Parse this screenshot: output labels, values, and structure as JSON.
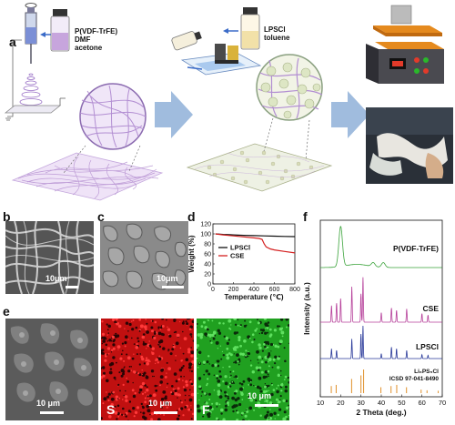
{
  "panels": {
    "a": "a",
    "b": "b",
    "c": "c",
    "d": "d",
    "e": "e",
    "f": "f"
  },
  "schematic": {
    "polymer_solution": [
      "P(VDF-TrFE)",
      "DMF",
      "acetone"
    ],
    "sulfide_solution": [
      "LPSCl",
      "toluene"
    ]
  },
  "micrographs": {
    "b_scale": "10μm",
    "c_scale": "10μm",
    "e_scale_1": "10 μm",
    "e_scale_2": "10 μm",
    "e_scale_3": "10 μm",
    "e_channel_S": "S",
    "e_channel_F": "F"
  },
  "colors": {
    "fiber": "#b894d3",
    "arrow": "#8fb0d8",
    "tga_lpscl": "#111111",
    "tga_cse": "#d42020",
    "xrd_pvdf": "#3aa33a",
    "xrd_cse": "#b6409a",
    "xrd_lpscl": "#2a3a9a",
    "xrd_ref": "#e0902a",
    "eds_S": "#e01818",
    "eds_F": "#2ab82a"
  },
  "chart_data": [
    {
      "type": "line",
      "panel": "d",
      "xlabel": "Temperature (℃)",
      "ylabel": "Weight (%)",
      "xlim": [
        0,
        800
      ],
      "ylim": [
        0,
        120
      ],
      "xticks": [
        0,
        200,
        400,
        600,
        800
      ],
      "yticks": [
        0,
        20,
        40,
        60,
        80,
        100,
        120
      ],
      "legend_position": "center-left",
      "series": [
        {
          "name": "LPSCl",
          "color": "#111111",
          "x": [
            25,
            100,
            200,
            300,
            400,
            500,
            600,
            700,
            800
          ],
          "y": [
            100,
            99,
            98,
            97,
            96.5,
            96,
            95.5,
            95,
            94.5
          ]
        },
        {
          "name": "CSE",
          "color": "#d42020",
          "x": [
            25,
            100,
            200,
            300,
            400,
            450,
            480,
            500,
            520,
            560,
            600,
            700,
            800
          ],
          "y": [
            100,
            98,
            96,
            94,
            92,
            91,
            89,
            80,
            74,
            70,
            68,
            65,
            62
          ]
        }
      ]
    },
    {
      "type": "line",
      "panel": "f",
      "xlabel": "2 Theta (deg.)",
      "ylabel": "Intensity (a.u.)",
      "xlim": [
        10,
        70
      ],
      "xticks": [
        10,
        20,
        30,
        40,
        50,
        60,
        70
      ],
      "traces": [
        {
          "name": "P(VDF-TrFE)",
          "color": "#3aa33a",
          "peaks": [
            [
              20,
              1.0
            ],
            [
              36,
              0.1
            ],
            [
              41,
              0.12
            ]
          ]
        },
        {
          "name": "CSE",
          "color": "#b6409a",
          "peaks": [
            [
              15.5,
              0.35
            ],
            [
              18,
              0.4
            ],
            [
              20,
              0.5
            ],
            [
              25.5,
              0.75
            ],
            [
              30,
              0.6
            ],
            [
              31,
              0.95
            ],
            [
              40,
              0.2
            ],
            [
              45,
              0.3
            ],
            [
              47.5,
              0.25
            ],
            [
              52.5,
              0.28
            ],
            [
              60,
              0.18
            ],
            [
              63,
              0.15
            ]
          ]
        },
        {
          "name": "LPSCl",
          "color": "#2a3a9a",
          "peaks": [
            [
              15.5,
              0.3
            ],
            [
              18,
              0.25
            ],
            [
              25.5,
              0.6
            ],
            [
              30,
              0.75
            ],
            [
              31,
              1.0
            ],
            [
              40,
              0.15
            ],
            [
              45,
              0.35
            ],
            [
              47.5,
              0.3
            ],
            [
              52.5,
              0.25
            ],
            [
              60,
              0.12
            ],
            [
              63,
              0.1
            ]
          ]
        },
        {
          "name": "Li6PS5Cl ICSD 97-041-8490",
          "color": "#e0902a",
          "sticks": [
            [
              15.4,
              0.3
            ],
            [
              17.8,
              0.35
            ],
            [
              25.4,
              0.6
            ],
            [
              30.0,
              0.75
            ],
            [
              31.3,
              1.0
            ],
            [
              39.8,
              0.25
            ],
            [
              44.8,
              0.3
            ],
            [
              47.6,
              0.35
            ],
            [
              52.4,
              0.25
            ],
            [
              59.6,
              0.15
            ],
            [
              62.5,
              0.12
            ],
            [
              68.0,
              0.1
            ]
          ]
        }
      ],
      "labels": {
        "pvdf": "P(VDF-TrFE)",
        "cse": "CSE",
        "lpscl": "LPSCl",
        "ref_line1": "Li₆PS₅Cl",
        "ref_line2": "ICSD 97-041-8490"
      }
    }
  ]
}
